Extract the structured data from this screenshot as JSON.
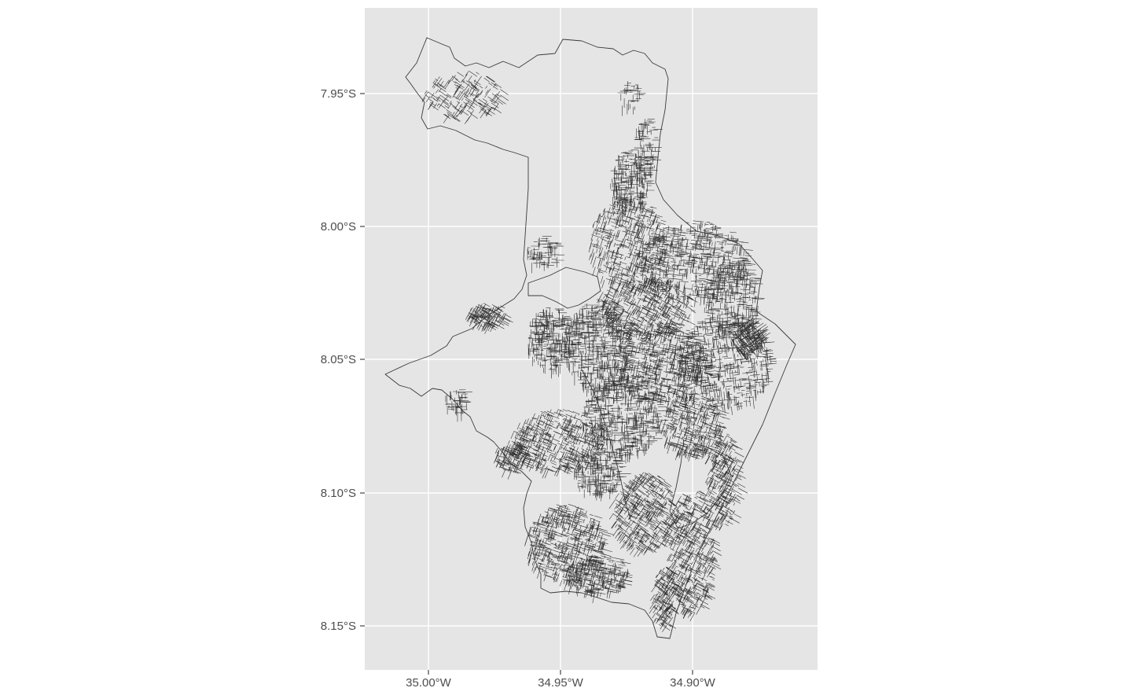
{
  "map": {
    "panel_background": "#e5e5e5",
    "grid_color": "#ffffff",
    "line_color": "#333333",
    "x_axis": {
      "ticks": [
        {
          "label": "35.00°W",
          "value": -35.0
        },
        {
          "label": "34.95°W",
          "value": -34.95
        },
        {
          "label": "34.90°W",
          "value": -34.9
        }
      ]
    },
    "y_axis": {
      "ticks": [
        {
          "label": "7.95°S",
          "value": -7.95
        },
        {
          "label": "8.00°S",
          "value": -8.0
        },
        {
          "label": "8.05°S",
          "value": -8.05
        },
        {
          "label": "8.10°S",
          "value": -8.1
        },
        {
          "label": "8.15°S",
          "value": -8.15
        }
      ]
    },
    "layers": [
      "municipal-boundary",
      "street-network"
    ]
  }
}
